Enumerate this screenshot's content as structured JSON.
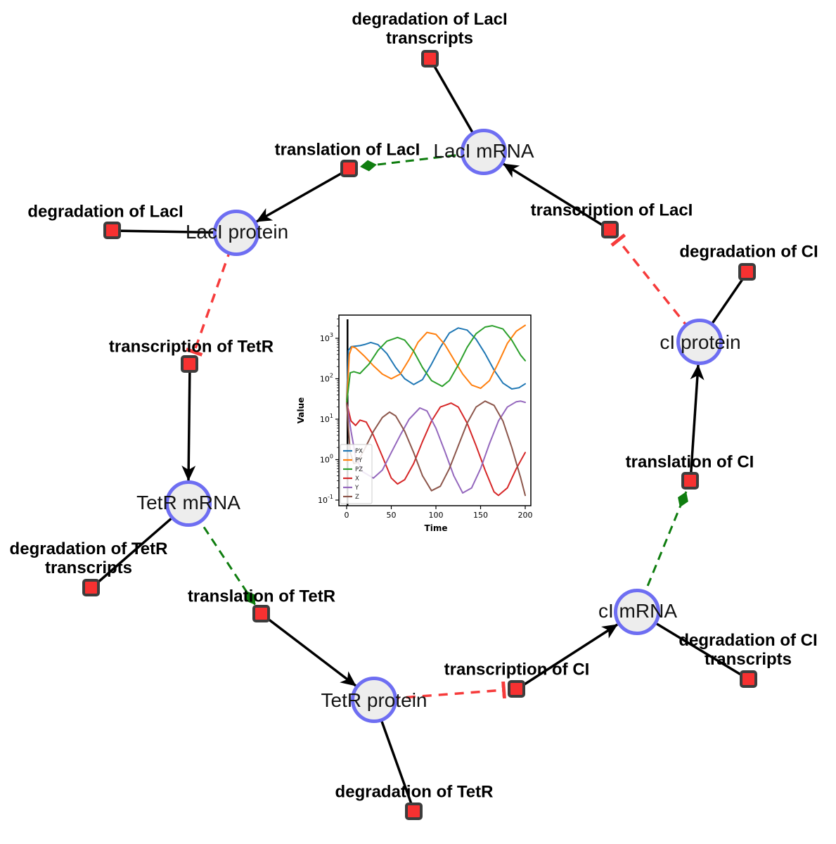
{
  "diagram": {
    "species": [
      {
        "label": "LacI mRNA"
      },
      {
        "label": "LacI protein"
      },
      {
        "label": "TetR mRNA"
      },
      {
        "label": "TetR protein"
      },
      {
        "label": "cI mRNA"
      },
      {
        "label": "cI protein"
      }
    ],
    "reactions": [
      {
        "lines": [
          "degradation of LacI",
          "transcripts"
        ]
      },
      {
        "lines": [
          "translation of LacI"
        ]
      },
      {
        "lines": [
          "transcription of LacI"
        ]
      },
      {
        "lines": [
          "degradation of LacI"
        ]
      },
      {
        "lines": [
          "transcription of TetR"
        ]
      },
      {
        "lines": [
          "degradation of TetR",
          "transcripts"
        ]
      },
      {
        "lines": [
          "translation of TetR"
        ]
      },
      {
        "lines": [
          "degradation of TetR"
        ]
      },
      {
        "lines": [
          "transcription of CI"
        ]
      },
      {
        "lines": [
          "degradation of CI",
          "transcripts"
        ]
      },
      {
        "lines": [
          "translation of CI"
        ]
      },
      {
        "lines": [
          "degradation of CI"
        ]
      }
    ],
    "colors": {
      "species_fill": "#ededed",
      "species_border": "#6e6ef2",
      "reaction_fill": "#f73131",
      "reaction_border": "#3d3d3d",
      "edge_black": "#000000",
      "edge_green": "#0f7d0f",
      "edge_red": "#f63b3b"
    }
  },
  "chart_data": {
    "type": "line",
    "title": "",
    "xlabel": "Time",
    "ylabel": "Value",
    "x_ticks": [
      0,
      50,
      100,
      150,
      200
    ],
    "y_scale": "log",
    "y_tick_exponents": [
      3,
      2,
      1,
      0,
      -1
    ],
    "xlim": [
      -9,
      206
    ],
    "ylim_log": [
      -1.14,
      3.57
    ],
    "grid": false,
    "legend_position": "lower left",
    "vline_at_t": 1,
    "series": [
      {
        "name": "PX",
        "color": "#1f77b4",
        "points": [
          [
            0,
            30
          ],
          [
            2,
            500
          ],
          [
            5,
            620
          ],
          [
            10,
            640
          ],
          [
            15,
            660
          ],
          [
            20,
            700
          ],
          [
            27,
            790
          ],
          [
            35,
            700
          ],
          [
            45,
            420
          ],
          [
            55,
            190
          ],
          [
            65,
            100
          ],
          [
            75,
            72
          ],
          [
            85,
            95
          ],
          [
            95,
            230
          ],
          [
            105,
            600
          ],
          [
            115,
            1350
          ],
          [
            125,
            1800
          ],
          [
            135,
            1600
          ],
          [
            145,
            950
          ],
          [
            155,
            420
          ],
          [
            165,
            165
          ],
          [
            175,
            78
          ],
          [
            185,
            56
          ],
          [
            193,
            60
          ],
          [
            200,
            75
          ]
        ]
      },
      {
        "name": "PY",
        "color": "#ff7f0e",
        "points": [
          [
            0,
            25
          ],
          [
            3,
            400
          ],
          [
            6,
            620
          ],
          [
            10,
            580
          ],
          [
            20,
            360
          ],
          [
            30,
            210
          ],
          [
            40,
            130
          ],
          [
            50,
            100
          ],
          [
            60,
            130
          ],
          [
            70,
            300
          ],
          [
            80,
            800
          ],
          [
            90,
            1400
          ],
          [
            100,
            1250
          ],
          [
            110,
            700
          ],
          [
            120,
            300
          ],
          [
            130,
            130
          ],
          [
            140,
            70
          ],
          [
            150,
            58
          ],
          [
            160,
            90
          ],
          [
            170,
            250
          ],
          [
            180,
            750
          ],
          [
            190,
            1500
          ],
          [
            200,
            2100
          ]
        ]
      },
      {
        "name": "PZ",
        "color": "#2ca02c",
        "points": [
          [
            0,
            25
          ],
          [
            4,
            140
          ],
          [
            8,
            150
          ],
          [
            15,
            135
          ],
          [
            25,
            230
          ],
          [
            35,
            500
          ],
          [
            45,
            850
          ],
          [
            57,
            1050
          ],
          [
            65,
            900
          ],
          [
            75,
            480
          ],
          [
            85,
            190
          ],
          [
            95,
            90
          ],
          [
            107,
            65
          ],
          [
            115,
            90
          ],
          [
            125,
            220
          ],
          [
            135,
            600
          ],
          [
            145,
            1300
          ],
          [
            155,
            1900
          ],
          [
            163,
            2050
          ],
          [
            175,
            1700
          ],
          [
            185,
            900
          ],
          [
            195,
            380
          ],
          [
            200,
            280
          ]
        ]
      },
      {
        "name": "X",
        "color": "#d62728",
        "points": [
          [
            0,
            25
          ],
          [
            5,
            9
          ],
          [
            10,
            7
          ],
          [
            15,
            9.5
          ],
          [
            22,
            8.5
          ],
          [
            30,
            4
          ],
          [
            40,
            1.2
          ],
          [
            50,
            0.35
          ],
          [
            57,
            0.25
          ],
          [
            65,
            0.32
          ],
          [
            75,
            0.8
          ],
          [
            85,
            2.8
          ],
          [
            95,
            9
          ],
          [
            105,
            20
          ],
          [
            117,
            25
          ],
          [
            125,
            20
          ],
          [
            135,
            8
          ],
          [
            145,
            2.2
          ],
          [
            155,
            0.55
          ],
          [
            165,
            0.16
          ],
          [
            170,
            0.13
          ],
          [
            180,
            0.2
          ],
          [
            190,
            0.6
          ],
          [
            200,
            1.5
          ]
        ]
      },
      {
        "name": "Y",
        "color": "#9467bd",
        "points": [
          [
            0,
            25
          ],
          [
            5,
            5
          ],
          [
            10,
            1.2
          ],
          [
            18,
            0.5
          ],
          [
            30,
            0.35
          ],
          [
            40,
            0.55
          ],
          [
            50,
            1.5
          ],
          [
            60,
            4
          ],
          [
            70,
            10
          ],
          [
            82,
            19
          ],
          [
            90,
            16
          ],
          [
            100,
            6
          ],
          [
            110,
            1.6
          ],
          [
            120,
            0.4
          ],
          [
            130,
            0.15
          ],
          [
            140,
            0.2
          ],
          [
            150,
            0.6
          ],
          [
            160,
            2.5
          ],
          [
            170,
            9
          ],
          [
            180,
            20
          ],
          [
            190,
            27
          ],
          [
            195,
            28
          ],
          [
            200,
            26
          ]
        ]
      },
      {
        "name": "Z",
        "color": "#8c564b",
        "points": [
          [
            0,
            25
          ],
          [
            4,
            1.5
          ],
          [
            8,
            0.8
          ],
          [
            12,
            0.85
          ],
          [
            20,
            1.8
          ],
          [
            30,
            5
          ],
          [
            40,
            11
          ],
          [
            48,
            15
          ],
          [
            55,
            12
          ],
          [
            65,
            5
          ],
          [
            75,
            1.5
          ],
          [
            85,
            0.4
          ],
          [
            95,
            0.17
          ],
          [
            105,
            0.22
          ],
          [
            115,
            0.6
          ],
          [
            125,
            2.2
          ],
          [
            135,
            8
          ],
          [
            145,
            20
          ],
          [
            155,
            28
          ],
          [
            165,
            22
          ],
          [
            175,
            9
          ],
          [
            185,
            2
          ],
          [
            195,
            0.35
          ],
          [
            200,
            0.13
          ]
        ]
      }
    ]
  }
}
